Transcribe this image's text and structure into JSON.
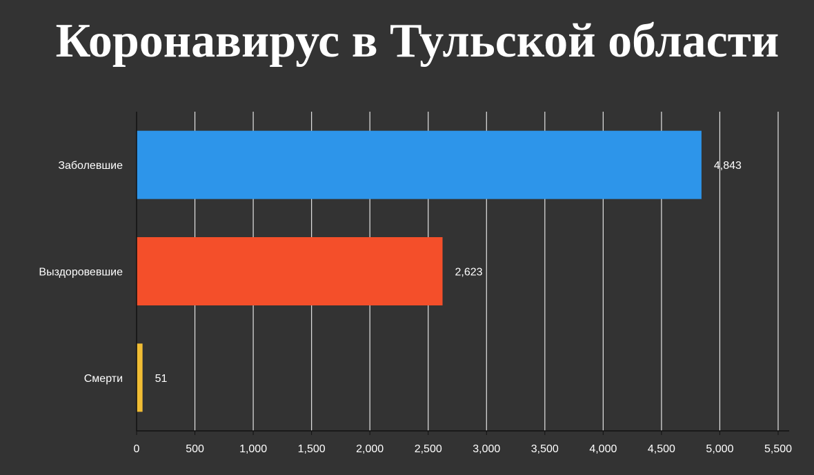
{
  "title": "Коронавирус в Тульской области",
  "chart_data": {
    "type": "bar",
    "orientation": "horizontal",
    "categories": [
      "Заболевшие",
      "Выздоровевшие",
      "Смерти"
    ],
    "values": [
      4843,
      2623,
      51
    ],
    "value_labels": [
      "4,843",
      "2,623",
      "51"
    ],
    "colors": [
      "#2d95ea",
      "#f44f2a",
      "#f1bd34"
    ],
    "xlim": [
      0,
      5500
    ],
    "x_ticks": [
      0,
      500,
      1000,
      1500,
      2000,
      2500,
      3000,
      3500,
      4000,
      4500,
      5000,
      5500
    ],
    "x_tick_labels": [
      "0",
      "500",
      "1,000",
      "1,500",
      "2,000",
      "2,500",
      "3,000",
      "3,500",
      "4,000",
      "4,500",
      "5,000",
      "5,500"
    ],
    "grid": true,
    "legend": "none",
    "xlabel": "",
    "ylabel": ""
  }
}
